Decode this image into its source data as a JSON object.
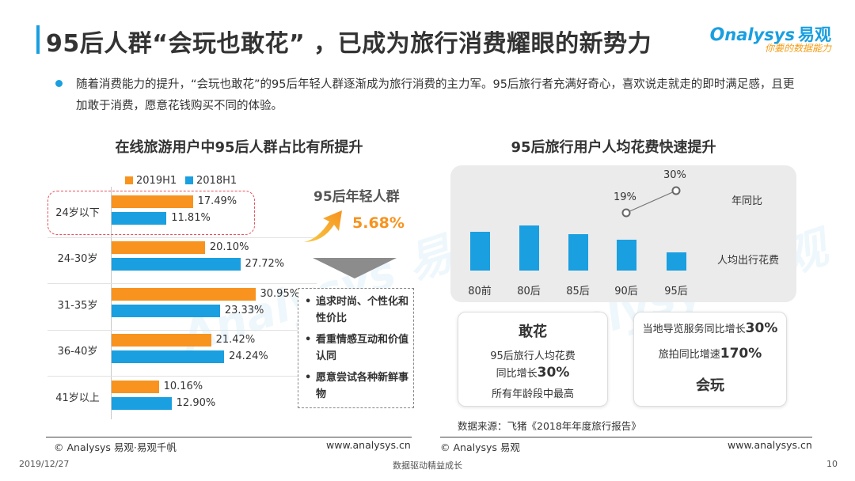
{
  "page": {
    "title": "95后人群“会玩也敢花” ，已成为旅行消费耀眼的新势力",
    "logo": {
      "text": "nalysys",
      "cn": "易观",
      "tagline": "你要的数据能力"
    },
    "intro": "随着消费能力的提升，“会玩也敢花”的95后年轻人群逐渐成为旅行消费的主力军。95后旅行者充满好奇心，喜欢说走就走的即时满足感，且更加敢于消费，愿意花钱购买不同的体验。",
    "source": "数据来源：飞猪《2018年年度旅行报告》",
    "footer_left_copyright": "© Analysys 易观·易观千帆",
    "footer_left_url": "www.analysys.cn",
    "footer_right_copyright": "© Analysys 易观",
    "footer_right_url": "www.analysys.cn",
    "date": "2019/12/27",
    "slogan": "数据驱动精益成长",
    "page_number": "10"
  },
  "left_callout": {
    "label": "95后年轻人群",
    "value": "5.68%",
    "features": [
      "追求时尚、个性化和性价比",
      "看重情感互动和价值认同",
      "愿意尝试各种新鲜事物"
    ]
  },
  "right_cards": {
    "card1": {
      "title": "敢花",
      "line1": "95后旅行人均花费",
      "line2_prefix": "同比增长",
      "line2_value": "30%",
      "line3": "所有年龄段中最高"
    },
    "card2": {
      "line1_prefix": "当地导览服务同比增长",
      "line1_value": "30%",
      "line2_prefix": "旅拍同比增速",
      "line2_value": "170%",
      "title": "会玩"
    }
  },
  "chart_data": [
    {
      "type": "bar",
      "orientation": "horizontal",
      "title": "在线旅游用户中95后人群占比有所提升",
      "categories": [
        "24岁以下",
        "24-30岁",
        "31-35岁",
        "36-40岁",
        "41岁以上"
      ],
      "series": [
        {
          "name": "2019H1",
          "values": [
            17.49,
            20.1,
            30.95,
            21.42,
            10.16
          ],
          "labels": [
            "17.49%",
            "20.10%",
            "30.95%",
            "21.42%",
            "10.16%"
          ],
          "color": "#f7931e"
        },
        {
          "name": "2018H1",
          "values": [
            11.81,
            27.72,
            23.33,
            24.24,
            12.9
          ],
          "labels": [
            "11.81%",
            "27.72%",
            "23.33%",
            "24.24%",
            "12.90%"
          ],
          "color": "#1a9fe0"
        }
      ],
      "legend": "top",
      "highlight_category": "24岁以下"
    },
    {
      "type": "bar",
      "title": "95后旅行用户人均花费快速提升",
      "categories": [
        "80前",
        "80后",
        "85后",
        "90后",
        "95后"
      ],
      "series": [
        {
          "name": "人均出行花费",
          "values": [
            49,
            57,
            46,
            39,
            23
          ],
          "color": "#1a9fe0"
        }
      ],
      "line_series": {
        "name": "年同比",
        "categories": [
          "90后",
          "95后"
        ],
        "values": [
          19,
          30
        ],
        "labels": [
          "19%",
          "30%"
        ]
      },
      "y_axis": "none",
      "legend": "right"
    }
  ]
}
